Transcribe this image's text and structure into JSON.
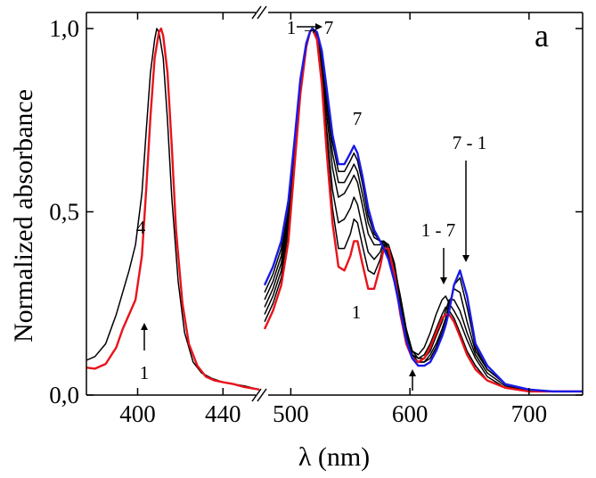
{
  "chart_data": {
    "type": "line",
    "panel_label": "a",
    "xlabel": "λ (nm)",
    "ylabel": "Normalized absorbance",
    "broken_axis": true,
    "break_mark": "//",
    "segments": [
      {
        "name": "soret",
        "xlim": [
          376,
          457
        ],
        "ticks": [
          400,
          440
        ],
        "tick_labels": [
          "400",
          "440"
        ]
      },
      {
        "name": "q-band",
        "xlim": [
          478,
          745
        ],
        "ticks": [
          500,
          600,
          700
        ],
        "tick_labels": [
          "500",
          "600",
          "700"
        ]
      }
    ],
    "ylim": [
      0,
      1.0
    ],
    "yticks": [
      0,
      0.5,
      1.0
    ],
    "ytick_labels": [
      "0,0",
      "0,5",
      "1,0"
    ],
    "annotations": {
      "soret_upper": "4",
      "soret_lower": "1",
      "q_peak_shift": "1 → 7",
      "q_band_7": "7",
      "q_band_1": "1",
      "q_1_7": "1 - 7",
      "q_7_1": "7 - 1"
    },
    "series": [
      {
        "name": "1",
        "segment": "soret",
        "color": "#e8131b",
        "x": [
          376,
          380,
          385,
          390,
          393,
          396,
          399,
          402,
          404,
          406,
          408,
          410,
          411,
          412,
          414,
          416,
          418,
          421,
          424,
          428,
          432,
          436,
          440,
          445,
          450,
          457
        ],
        "y": [
          0.075,
          0.072,
          0.085,
          0.13,
          0.18,
          0.22,
          0.26,
          0.38,
          0.56,
          0.76,
          0.92,
          0.99,
          1.0,
          0.98,
          0.88,
          0.68,
          0.45,
          0.25,
          0.14,
          0.08,
          0.05,
          0.04,
          0.035,
          0.03,
          0.022,
          0.015
        ]
      },
      {
        "name": "4",
        "segment": "soret",
        "color": "#000000",
        "x": [
          376,
          380,
          385,
          390,
          393,
          396,
          399,
          402,
          404,
          406,
          408,
          409,
          410,
          412,
          414,
          416,
          419,
          422,
          426,
          430,
          435,
          440,
          445,
          450,
          457
        ],
        "y": [
          0.095,
          0.105,
          0.14,
          0.22,
          0.28,
          0.34,
          0.41,
          0.55,
          0.72,
          0.88,
          0.97,
          1.0,
          0.99,
          0.92,
          0.75,
          0.54,
          0.31,
          0.17,
          0.09,
          0.06,
          0.045,
          0.035,
          0.03,
          0.025,
          0.015
        ]
      },
      {
        "name": "1",
        "segment": "q-band",
        "color": "#e8131b",
        "x": [
          478,
          485,
          492,
          498,
          503,
          508,
          513,
          516,
          518,
          522,
          526,
          530,
          535,
          540,
          545,
          550,
          553,
          556,
          560,
          565,
          570,
          575,
          578,
          582,
          587,
          592,
          597,
          602,
          607,
          612,
          617,
          622,
          627,
          630,
          633,
          637,
          642,
          648,
          655,
          665,
          680,
          700,
          720,
          745
        ],
        "y": [
          0.18,
          0.23,
          0.3,
          0.42,
          0.62,
          0.82,
          0.95,
          0.99,
          1.0,
          0.97,
          0.85,
          0.67,
          0.47,
          0.35,
          0.34,
          0.38,
          0.42,
          0.42,
          0.36,
          0.29,
          0.29,
          0.35,
          0.4,
          0.4,
          0.33,
          0.22,
          0.14,
          0.1,
          0.09,
          0.1,
          0.13,
          0.17,
          0.21,
          0.22,
          0.22,
          0.2,
          0.16,
          0.11,
          0.07,
          0.04,
          0.02,
          0.01,
          0.01,
          0.01
        ]
      },
      {
        "name": "2",
        "segment": "q-band",
        "color": "#000000",
        "x": [
          478,
          485,
          492,
          498,
          503,
          508,
          513,
          516,
          518,
          522,
          526,
          530,
          535,
          540,
          545,
          550,
          553,
          556,
          560,
          565,
          570,
          575,
          578,
          582,
          587,
          592,
          597,
          602,
          607,
          612,
          617,
          622,
          627,
          630,
          633,
          637,
          642,
          648,
          655,
          665,
          680,
          700,
          720,
          745
        ],
        "y": [
          0.2,
          0.25,
          0.32,
          0.44,
          0.63,
          0.83,
          0.95,
          0.99,
          1.0,
          0.98,
          0.87,
          0.7,
          0.51,
          0.4,
          0.4,
          0.44,
          0.48,
          0.47,
          0.41,
          0.34,
          0.33,
          0.37,
          0.41,
          0.41,
          0.35,
          0.25,
          0.16,
          0.11,
          0.1,
          0.11,
          0.14,
          0.18,
          0.22,
          0.24,
          0.23,
          0.21,
          0.17,
          0.12,
          0.08,
          0.04,
          0.02,
          0.01,
          0.01,
          0.01
        ]
      },
      {
        "name": "3",
        "segment": "q-band",
        "color": "#000000",
        "x": [
          478,
          485,
          492,
          498,
          503,
          508,
          513,
          516,
          518,
          522,
          526,
          530,
          535,
          540,
          545,
          550,
          553,
          556,
          560,
          565,
          570,
          575,
          578,
          582,
          587,
          592,
          597,
          602,
          607,
          612,
          617,
          622,
          627,
          630,
          633,
          637,
          642,
          648,
          655,
          665,
          680,
          700,
          720,
          745
        ],
        "y": [
          0.22,
          0.27,
          0.34,
          0.46,
          0.64,
          0.84,
          0.96,
          0.99,
          1.0,
          0.98,
          0.89,
          0.73,
          0.56,
          0.47,
          0.48,
          0.51,
          0.54,
          0.52,
          0.46,
          0.39,
          0.37,
          0.39,
          0.42,
          0.41,
          0.36,
          0.26,
          0.17,
          0.12,
          0.11,
          0.13,
          0.17,
          0.22,
          0.26,
          0.27,
          0.25,
          0.23,
          0.2,
          0.15,
          0.1,
          0.05,
          0.02,
          0.01,
          0.01,
          0.01
        ]
      },
      {
        "name": "4",
        "segment": "q-band",
        "color": "#000000",
        "x": [
          478,
          485,
          492,
          498,
          503,
          508,
          513,
          516,
          518,
          522,
          526,
          530,
          535,
          540,
          545,
          550,
          553,
          556,
          560,
          565,
          570,
          575,
          578,
          582,
          587,
          592,
          597,
          602,
          607,
          612,
          617,
          622,
          627,
          630,
          633,
          637,
          642,
          648,
          655,
          665,
          680,
          700,
          720,
          745
        ],
        "y": [
          0.24,
          0.29,
          0.36,
          0.48,
          0.66,
          0.85,
          0.96,
          0.99,
          1.0,
          0.99,
          0.91,
          0.77,
          0.62,
          0.54,
          0.55,
          0.58,
          0.6,
          0.58,
          0.52,
          0.44,
          0.41,
          0.41,
          0.42,
          0.4,
          0.35,
          0.27,
          0.18,
          0.12,
          0.1,
          0.1,
          0.12,
          0.16,
          0.2,
          0.23,
          0.26,
          0.26,
          0.23,
          0.17,
          0.11,
          0.06,
          0.025,
          0.01,
          0.01,
          0.01
        ]
      },
      {
        "name": "5",
        "segment": "q-band",
        "color": "#000000",
        "x": [
          478,
          485,
          492,
          498,
          503,
          508,
          513,
          516,
          518,
          522,
          526,
          530,
          535,
          540,
          545,
          550,
          553,
          556,
          560,
          565,
          570,
          575,
          578,
          582,
          587,
          592,
          597,
          602,
          607,
          612,
          617,
          622,
          627,
          630,
          633,
          637,
          642,
          648,
          655,
          665,
          680,
          700,
          720,
          745
        ],
        "y": [
          0.26,
          0.31,
          0.38,
          0.5,
          0.67,
          0.85,
          0.96,
          0.99,
          1.0,
          0.99,
          0.92,
          0.8,
          0.66,
          0.58,
          0.58,
          0.61,
          0.63,
          0.61,
          0.55,
          0.47,
          0.43,
          0.42,
          0.42,
          0.39,
          0.33,
          0.25,
          0.17,
          0.11,
          0.09,
          0.09,
          0.11,
          0.14,
          0.18,
          0.21,
          0.25,
          0.29,
          0.28,
          0.2,
          0.12,
          0.07,
          0.03,
          0.01,
          0.01,
          0.01
        ]
      },
      {
        "name": "6",
        "segment": "q-band",
        "color": "#000000",
        "x": [
          478,
          485,
          492,
          498,
          503,
          508,
          513,
          516,
          518,
          522,
          526,
          530,
          535,
          540,
          545,
          550,
          553,
          556,
          560,
          565,
          570,
          575,
          578,
          582,
          587,
          592,
          597,
          602,
          607,
          612,
          617,
          622,
          627,
          630,
          633,
          637,
          642,
          648,
          655,
          665,
          680,
          700,
          720,
          745
        ],
        "y": [
          0.28,
          0.33,
          0.4,
          0.52,
          0.68,
          0.86,
          0.96,
          0.99,
          1.0,
          0.99,
          0.93,
          0.82,
          0.69,
          0.61,
          0.61,
          0.64,
          0.66,
          0.64,
          0.58,
          0.49,
          0.44,
          0.42,
          0.41,
          0.38,
          0.32,
          0.24,
          0.16,
          0.11,
          0.09,
          0.09,
          0.1,
          0.13,
          0.17,
          0.2,
          0.24,
          0.3,
          0.32,
          0.24,
          0.13,
          0.07,
          0.03,
          0.01,
          0.01,
          0.01
        ]
      },
      {
        "name": "7",
        "segment": "q-band",
        "color": "#1a1ae6",
        "x": [
          478,
          485,
          492,
          498,
          503,
          508,
          513,
          516,
          518,
          522,
          526,
          530,
          535,
          540,
          545,
          550,
          553,
          556,
          560,
          565,
          570,
          575,
          578,
          582,
          587,
          592,
          597,
          602,
          607,
          612,
          617,
          622,
          627,
          630,
          633,
          637,
          642,
          648,
          655,
          665,
          680,
          700,
          720,
          745
        ],
        "y": [
          0.3,
          0.35,
          0.42,
          0.53,
          0.69,
          0.86,
          0.96,
          0.99,
          1.0,
          0.99,
          0.94,
          0.84,
          0.71,
          0.63,
          0.63,
          0.66,
          0.68,
          0.66,
          0.6,
          0.51,
          0.45,
          0.42,
          0.4,
          0.37,
          0.31,
          0.23,
          0.15,
          0.1,
          0.08,
          0.08,
          0.09,
          0.12,
          0.16,
          0.19,
          0.23,
          0.3,
          0.34,
          0.27,
          0.14,
          0.08,
          0.03,
          0.015,
          0.01,
          0.01
        ]
      }
    ]
  }
}
